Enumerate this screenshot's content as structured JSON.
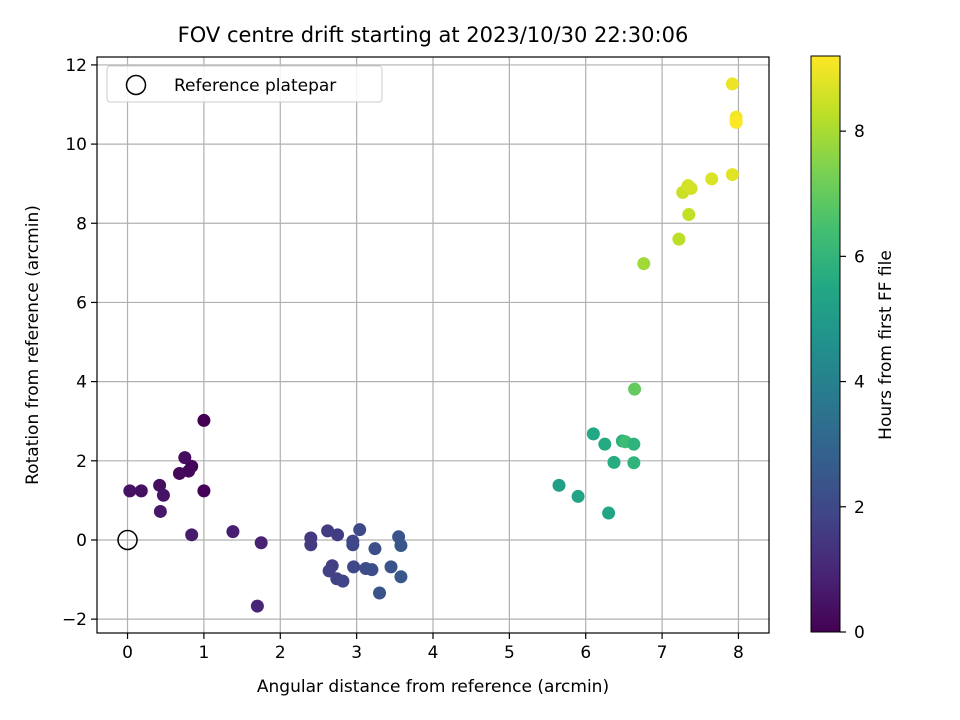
{
  "chart_data": {
    "type": "scatter",
    "title": "FOV centre drift starting at 2023/10/30 22:30:06",
    "xlabel": "Angular distance from reference (arcmin)",
    "ylabel": "Rotation from reference (arcmin)",
    "xlim": [
      -0.4,
      8.4
    ],
    "ylim": [
      -2.35,
      12.2
    ],
    "xticks": [
      0,
      1,
      2,
      3,
      4,
      5,
      6,
      7,
      8
    ],
    "yticks": [
      -2,
      0,
      2,
      4,
      6,
      8,
      10,
      12
    ],
    "grid": true,
    "legend": {
      "position": "top-left",
      "entries": [
        "Reference platepar"
      ]
    },
    "reference_point": {
      "x": 0,
      "y": 0,
      "label": "Reference platepar"
    },
    "colorbar": {
      "label": "Hours from first FF file",
      "range": [
        0,
        9.2
      ],
      "ticks": [
        0,
        2,
        4,
        6,
        8
      ],
      "colormap": "viridis"
    },
    "points": [
      {
        "x": 1.0,
        "y": 3.02,
        "c": 0.0
      },
      {
        "x": 1.0,
        "y": 1.24,
        "c": 0.05
      },
      {
        "x": 0.84,
        "y": 1.86,
        "c": 0.1
      },
      {
        "x": 0.8,
        "y": 1.74,
        "c": 0.15
      },
      {
        "x": 0.68,
        "y": 1.68,
        "c": 0.2
      },
      {
        "x": 0.75,
        "y": 2.08,
        "c": 0.3
      },
      {
        "x": 0.42,
        "y": 1.38,
        "c": 0.35
      },
      {
        "x": 0.18,
        "y": 1.24,
        "c": 0.4
      },
      {
        "x": 0.03,
        "y": 1.24,
        "c": 0.45
      },
      {
        "x": 0.47,
        "y": 1.13,
        "c": 0.5
      },
      {
        "x": 0.43,
        "y": 0.72,
        "c": 0.6
      },
      {
        "x": 0.84,
        "y": 0.13,
        "c": 0.7
      },
      {
        "x": 1.38,
        "y": 0.21,
        "c": 0.8
      },
      {
        "x": 1.75,
        "y": -0.07,
        "c": 0.9
      },
      {
        "x": 1.7,
        "y": -1.67,
        "c": 0.95
      },
      {
        "x": 2.4,
        "y": 0.05,
        "c": 1.5
      },
      {
        "x": 2.4,
        "y": -0.12,
        "c": 1.55
      },
      {
        "x": 2.62,
        "y": 0.23,
        "c": 1.6
      },
      {
        "x": 2.75,
        "y": 0.13,
        "c": 1.65
      },
      {
        "x": 2.68,
        "y": -0.65,
        "c": 1.7
      },
      {
        "x": 2.64,
        "y": -0.78,
        "c": 1.75
      },
      {
        "x": 2.74,
        "y": -0.98,
        "c": 1.8
      },
      {
        "x": 2.82,
        "y": -1.04,
        "c": 1.85
      },
      {
        "x": 2.95,
        "y": -0.03,
        "c": 1.9
      },
      {
        "x": 2.95,
        "y": -0.12,
        "c": 1.95
      },
      {
        "x": 2.96,
        "y": -0.68,
        "c": 2.0
      },
      {
        "x": 3.04,
        "y": 0.26,
        "c": 2.05
      },
      {
        "x": 3.12,
        "y": -0.72,
        "c": 2.1
      },
      {
        "x": 3.2,
        "y": -0.75,
        "c": 2.15
      },
      {
        "x": 3.24,
        "y": -0.22,
        "c": 2.2
      },
      {
        "x": 3.3,
        "y": -1.34,
        "c": 2.3
      },
      {
        "x": 3.45,
        "y": -0.68,
        "c": 2.35
      },
      {
        "x": 3.55,
        "y": 0.08,
        "c": 2.4
      },
      {
        "x": 3.58,
        "y": -0.14,
        "c": 2.45
      },
      {
        "x": 3.58,
        "y": -0.93,
        "c": 2.5
      },
      {
        "x": 5.65,
        "y": 1.38,
        "c": 5.2
      },
      {
        "x": 5.9,
        "y": 1.1,
        "c": 5.3
      },
      {
        "x": 6.3,
        "y": 0.68,
        "c": 5.4
      },
      {
        "x": 6.1,
        "y": 2.68,
        "c": 5.5
      },
      {
        "x": 6.25,
        "y": 2.42,
        "c": 5.6
      },
      {
        "x": 6.37,
        "y": 1.96,
        "c": 5.65
      },
      {
        "x": 6.48,
        "y": 2.5,
        "c": 5.8
      },
      {
        "x": 6.52,
        "y": 2.48,
        "c": 6.3
      },
      {
        "x": 6.63,
        "y": 2.42,
        "c": 5.9
      },
      {
        "x": 6.63,
        "y": 1.95,
        "c": 5.95
      },
      {
        "x": 6.64,
        "y": 3.81,
        "c": 7.0
      },
      {
        "x": 6.76,
        "y": 6.98,
        "c": 7.9
      },
      {
        "x": 7.22,
        "y": 7.6,
        "c": 8.25
      },
      {
        "x": 7.35,
        "y": 8.22,
        "c": 8.35
      },
      {
        "x": 7.27,
        "y": 8.78,
        "c": 8.45
      },
      {
        "x": 7.35,
        "y": 8.93,
        "c": 8.5
      },
      {
        "x": 7.38,
        "y": 8.88,
        "c": 8.55
      },
      {
        "x": 7.34,
        "y": 8.95,
        "c": 8.6
      },
      {
        "x": 7.65,
        "y": 9.12,
        "c": 8.7
      },
      {
        "x": 7.92,
        "y": 9.23,
        "c": 8.8
      },
      {
        "x": 7.92,
        "y": 11.52,
        "c": 8.95
      },
      {
        "x": 7.97,
        "y": 10.68,
        "c": 9.05
      },
      {
        "x": 7.97,
        "y": 10.55,
        "c": 9.15
      }
    ]
  }
}
